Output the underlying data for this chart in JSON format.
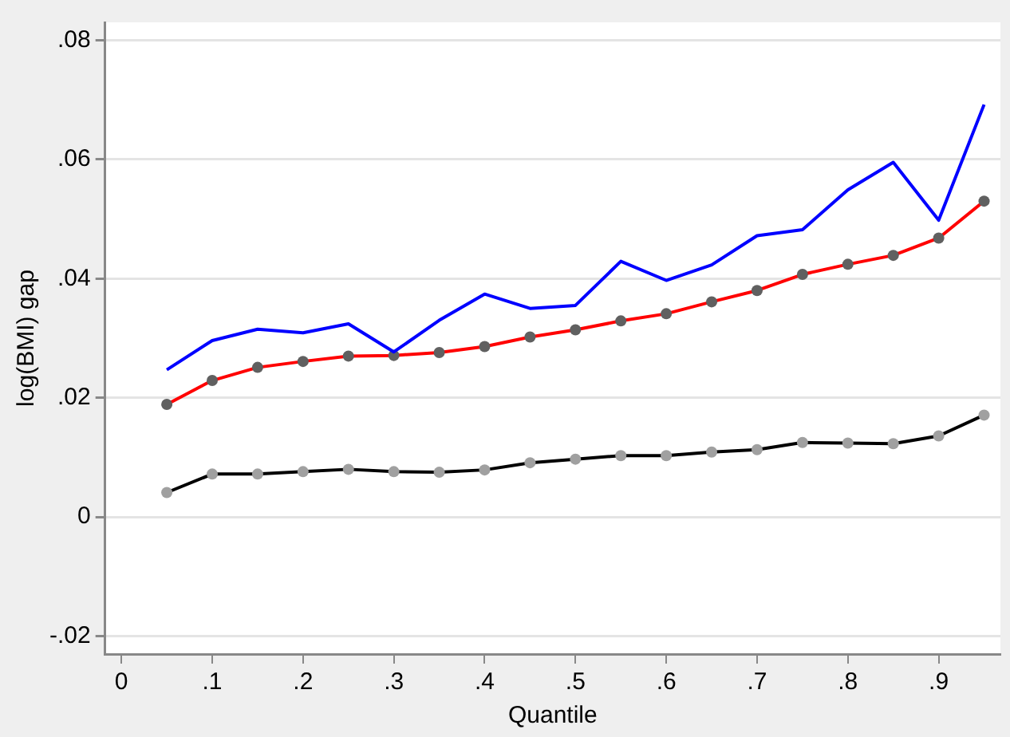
{
  "chart_data": {
    "type": "line",
    "xlabel": "Quantile",
    "ylabel": "log(BMI) gap",
    "x": [
      0.05,
      0.1,
      0.15,
      0.2,
      0.25,
      0.3,
      0.35,
      0.4,
      0.45,
      0.5,
      0.55,
      0.6,
      0.65,
      0.7,
      0.75,
      0.8,
      0.85,
      0.9,
      0.95
    ],
    "series": [
      {
        "color": "#0000ff",
        "marker": "none",
        "values": [
          0.0247,
          0.0296,
          0.0315,
          0.0309,
          0.0324,
          0.0277,
          0.033,
          0.0374,
          0.035,
          0.0355,
          0.0429,
          0.0397,
          0.0423,
          0.0472,
          0.0482,
          0.0549,
          0.0595,
          0.0498,
          0.0692
        ]
      },
      {
        "color": "#ff0000",
        "marker": "circle",
        "colors": [
          "#606060",
          "#606060",
          "#606060",
          "#606060",
          "#606060",
          "#606060",
          "#606060",
          "#606060",
          "#606060",
          "#606060",
          "#606060",
          "#606060",
          "#606060",
          "#606060",
          "#606060",
          "#606060",
          "#606060",
          "#606060",
          "#606060"
        ],
        "values": [
          0.0189,
          0.0229,
          0.0251,
          0.0261,
          0.027,
          0.0271,
          0.0276,
          0.0286,
          0.0302,
          0.0314,
          0.0329,
          0.0341,
          0.0361,
          0.038,
          0.0407,
          0.0424,
          0.0439,
          0.0468,
          0.053
        ]
      },
      {
        "color": "#000000",
        "marker": "circle",
        "colors": [
          "#a0a0a0",
          "#a0a0a0",
          "#a0a0a0",
          "#a0a0a0",
          "#a0a0a0",
          "#a0a0a0",
          "#a0a0a0",
          "#a0a0a0",
          "#a0a0a0",
          "#a0a0a0",
          "#a0a0a0",
          "#a0a0a0",
          "#a0a0a0",
          "#a0a0a0",
          "#a0a0a0",
          "#a0a0a0",
          "#a0a0a0",
          "#a0a0a0",
          "#a0a0a0"
        ],
        "values": [
          0.0041,
          0.0072,
          0.0072,
          0.0076,
          0.008,
          0.0076,
          0.0075,
          0.0079,
          0.0091,
          0.0097,
          0.0103,
          0.0103,
          0.0109,
          0.0113,
          0.0125,
          0.0124,
          0.0123,
          0.0136,
          0.0171
        ]
      }
    ],
    "xlim": [
      -0.018,
      0.968
    ],
    "xticks": [
      0,
      {
        "value": 0.1,
        "label": ".1"
      },
      {
        "value": 0.2,
        "label": ".2"
      },
      {
        "value": 0.3,
        "label": ".3"
      },
      {
        "value": 0.4,
        "label": ".4"
      },
      {
        "value": 0.5,
        "label": ".5"
      },
      {
        "value": 0.6,
        "label": ".6"
      },
      {
        "value": 0.7,
        "label": ".7"
      },
      {
        "value": 0.8,
        "label": ".8"
      },
      {
        "value": 0.9,
        "label": ".9"
      }
    ],
    "ylim": [
      -0.023,
      0.083
    ],
    "yticks": [
      {
        "value": -0.02,
        "label": "-.02"
      },
      0,
      {
        "value": 0.02,
        "label": ".02"
      },
      {
        "value": 0.04,
        "label": ".04"
      },
      {
        "value": 0.06,
        "label": ".06"
      },
      {
        "value": 0.08,
        "label": ".08"
      }
    ],
    "grid": "y",
    "legend": false,
    "line_style": "solid"
  }
}
